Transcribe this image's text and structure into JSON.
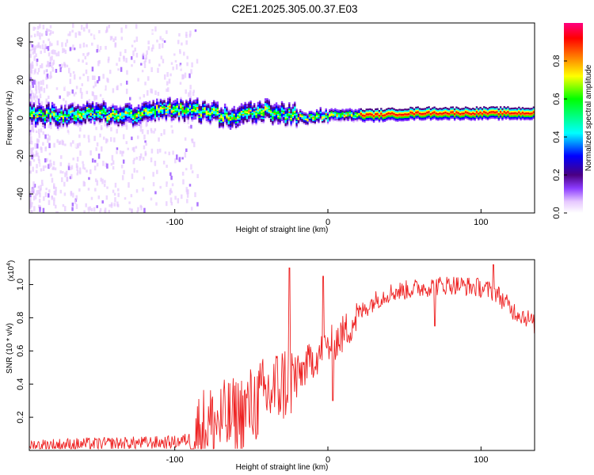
{
  "title": "C2E1.2025.305.00.37.E03",
  "chart_data": [
    {
      "type": "heatmap",
      "xlabel": "Height of straight line (km)",
      "ylabel": "Frequency (Hz)",
      "xlim": [
        -195,
        135
      ],
      "ylim": [
        -50,
        50
      ],
      "xticks": [
        -100,
        0,
        100
      ],
      "yticks": [
        -40,
        -20,
        0,
        20,
        40
      ],
      "colorbar": {
        "label": "Normalized spectral amplitude",
        "range": [
          0,
          1
        ],
        "ticks": [
          "0.0",
          "0.2",
          "0.4",
          "0.6",
          "0.8"
        ],
        "tick_values": [
          0,
          0.2,
          0.4,
          0.6,
          0.8
        ],
        "colormap": [
          "#ffffff",
          "#e6c8ff",
          "#8c3cff",
          "#4b0082",
          "#0000ff",
          "#00ffff",
          "#00ff00",
          "#ffff00",
          "#ff7f00",
          "#ff0000",
          "#ff0080"
        ]
      },
      "ridge": {
        "x": [
          -195,
          -170,
          -150,
          -130,
          -110,
          -100,
          -90,
          -80,
          -70,
          -60,
          -50,
          -40,
          -30,
          -20,
          -10,
          0,
          10,
          30,
          60,
          90,
          110,
          135
        ],
        "freq": [
          2,
          2,
          3,
          2,
          4,
          5,
          5,
          4,
          2,
          1,
          3,
          4,
          3,
          2,
          1,
          2,
          2,
          2,
          3,
          3,
          3,
          3
        ]
      }
    },
    {
      "type": "line",
      "xlabel": "Height of straight line (km)",
      "ylabel": "SNR (10 * v/v)",
      "yscale_label": "(x10",
      "yscale_exp": "4",
      "yscale_close": ")",
      "xlim": [
        -195,
        135
      ],
      "ylim": [
        0,
        1.15
      ],
      "xticks": [
        -100,
        0,
        100
      ],
      "yticks": [
        0.2,
        0.4,
        0.6,
        0.8,
        1.0
      ],
      "ytick_labels": [
        "0.2",
        "0.4",
        "0.6",
        "0.8",
        "1.0"
      ],
      "color": "#ee2222",
      "trend": {
        "x": [
          -195,
          -150,
          -100,
          -90,
          -80,
          -60,
          -45,
          -30,
          -20,
          -10,
          0,
          10,
          20,
          30,
          40,
          60,
          80,
          100,
          110,
          120,
          130,
          135
        ],
        "y": [
          0.03,
          0.04,
          0.05,
          0.07,
          0.15,
          0.2,
          0.3,
          0.4,
          0.45,
          0.55,
          0.62,
          0.7,
          0.82,
          0.9,
          0.95,
          0.98,
          1.0,
          0.98,
          0.95,
          0.85,
          0.8,
          0.76
        ]
      },
      "spikes": [
        {
          "x": -25,
          "y": 1.1
        },
        {
          "x": -3,
          "y": 1.05
        },
        {
          "x": 3,
          "y": 0.3
        },
        {
          "x": 70,
          "y": 0.75
        },
        {
          "x": 108,
          "y": 1.12
        }
      ]
    }
  ]
}
